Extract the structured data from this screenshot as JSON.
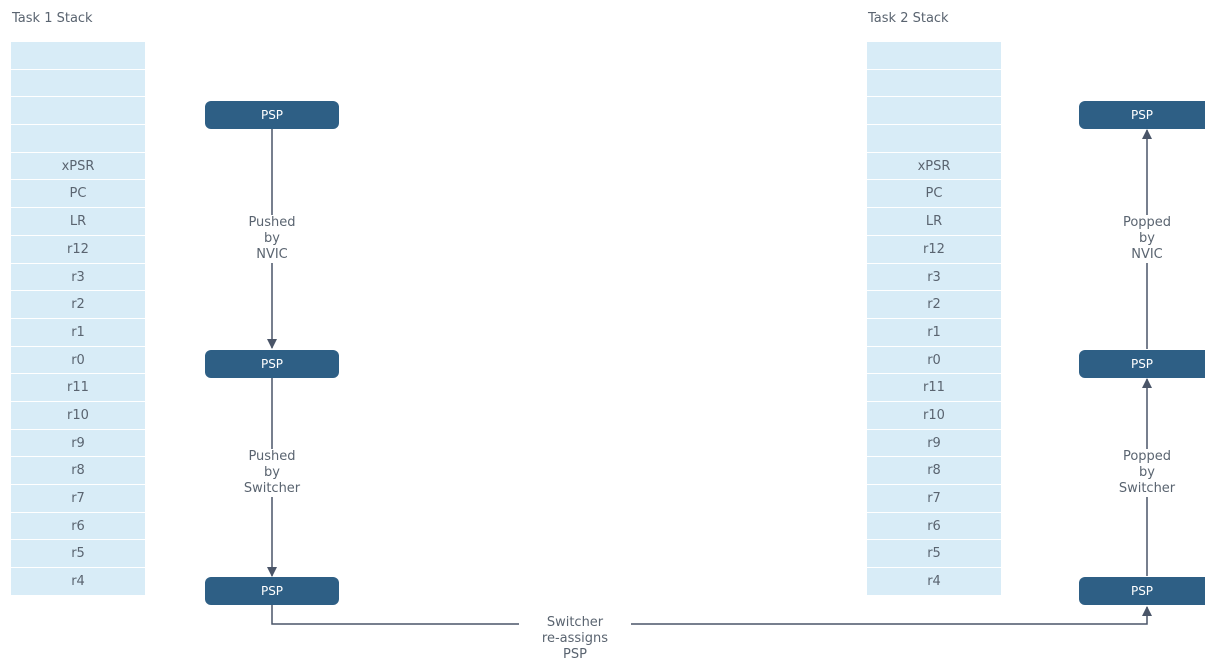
{
  "task1": {
    "title": "Task 1 Stack",
    "cells": [
      "",
      "",
      "",
      "",
      "xPSR",
      "PC",
      "LR",
      "r12",
      "r3",
      "r2",
      "r1",
      "r0",
      "r11",
      "r10",
      "r9",
      "r8",
      "r7",
      "r6",
      "r5",
      "r4"
    ]
  },
  "task2": {
    "title": "Task 2 Stack",
    "cells": [
      "",
      "",
      "",
      "",
      "xPSR",
      "PC",
      "LR",
      "r12",
      "r3",
      "r2",
      "r1",
      "r0",
      "r11",
      "r10",
      "r9",
      "r8",
      "r7",
      "r6",
      "r5",
      "r4"
    ]
  },
  "psp_label": "PSP",
  "labels": {
    "push_nvic": [
      "Pushed",
      "by",
      "NVIC"
    ],
    "push_switcher": [
      "Pushed",
      "by",
      "Switcher"
    ],
    "pop_nvic": [
      "Popped",
      "by",
      "NVIC"
    ],
    "pop_switcher": [
      "Popped",
      "by",
      "Switcher"
    ],
    "reassign": [
      "Switcher",
      "re-assigns",
      "PSP"
    ]
  },
  "colors": {
    "stack_fill": "#d8ecf7",
    "psp_fill": "#2e5f85",
    "line": "#4a5568"
  }
}
